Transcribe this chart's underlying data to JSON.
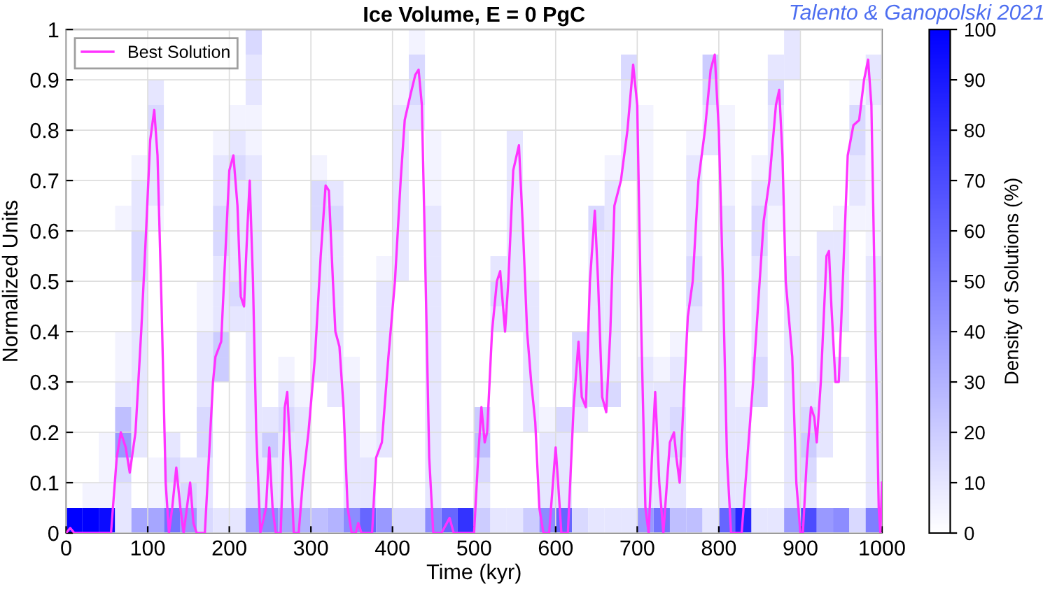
{
  "chart_data": {
    "type": "heatmap",
    "title": "Ice Volume, E = 0 PgC",
    "xlabel": "Time (kyr)",
    "ylabel": "Normalized Units",
    "clabel": "Density of Solutions (%)",
    "annotations": [
      "Talento & Ganopolski 2021"
    ],
    "xlim": [
      0,
      1000
    ],
    "xticks": [
      0,
      100,
      200,
      300,
      400,
      500,
      600,
      700,
      800,
      900,
      1000
    ],
    "ylim": [
      0,
      1
    ],
    "yticks": [
      0,
      0.1,
      0.2,
      0.3,
      0.4,
      0.5,
      0.6,
      0.7,
      0.8,
      0.9,
      1
    ],
    "clim": [
      0,
      100
    ],
    "cticks": [
      0,
      10,
      20,
      30,
      40,
      50,
      60,
      70,
      80,
      90,
      100
    ],
    "grid": true,
    "legend": "top left",
    "cells": [
      [
        null,
        null,
        null,
        null,
        null,
        null,
        null,
        0,
        0,
        0,
        0,
        15,
        0,
        0,
        0,
        0,
        0,
        0,
        0,
        0,
        0,
        5,
        0,
        0,
        0,
        0,
        0,
        0,
        0,
        0,
        0,
        0,
        0,
        0,
        0,
        0,
        0,
        0,
        0,
        0,
        0,
        0,
        0,
        0,
        10,
        0,
        0,
        0,
        0,
        0
      ],
      [
        null,
        null,
        null,
        null,
        null,
        null,
        null,
        0,
        0,
        0,
        0,
        10,
        0,
        0,
        0,
        0,
        0,
        0,
        0,
        0,
        0,
        15,
        0,
        0,
        0,
        0,
        0,
        0,
        0,
        0,
        0,
        0,
        0,
        0,
        15,
        0,
        0,
        0,
        0,
        20,
        0,
        0,
        0,
        10,
        10,
        0,
        0,
        0,
        0,
        10
      ],
      [
        0,
        0,
        0,
        0,
        0,
        10,
        0,
        0,
        0,
        0,
        0,
        10,
        0,
        0,
        0,
        0,
        0,
        0,
        0,
        0,
        5,
        15,
        0,
        0,
        0,
        0,
        0,
        0,
        0,
        0,
        0,
        0,
        0,
        0,
        10,
        0,
        0,
        0,
        0,
        15,
        0,
        0,
        0,
        15,
        0,
        0,
        0,
        0,
        5,
        10
      ],
      [
        0,
        0,
        0,
        0,
        0,
        15,
        0,
        0,
        0,
        0,
        5,
        5,
        0,
        0,
        0,
        0,
        0,
        0,
        0,
        0,
        10,
        10,
        0,
        0,
        0,
        0,
        0,
        0,
        0,
        0,
        0,
        0,
        0,
        0,
        10,
        5,
        0,
        0,
        0,
        10,
        5,
        0,
        0,
        10,
        0,
        0,
        0,
        0,
        15,
        5
      ],
      [
        0,
        0,
        0,
        0,
        0,
        10,
        0,
        0,
        0,
        5,
        10,
        5,
        0,
        0,
        0,
        0,
        0,
        0,
        0,
        0,
        10,
        0,
        5,
        0,
        0,
        0,
        0,
        10,
        0,
        0,
        0,
        0,
        0,
        0,
        10,
        5,
        0,
        0,
        5,
        10,
        5,
        0,
        0,
        10,
        0,
        0,
        0,
        0,
        15,
        5
      ],
      [
        0,
        0,
        0,
        0,
        5,
        10,
        0,
        0,
        0,
        10,
        15,
        10,
        0,
        0,
        0,
        5,
        0,
        0,
        0,
        0,
        10,
        0,
        5,
        0,
        0,
        0,
        0,
        10,
        0,
        0,
        0,
        0,
        0,
        5,
        10,
        5,
        0,
        0,
        10,
        0,
        5,
        0,
        5,
        10,
        0,
        0,
        0,
        0,
        10,
        5
      ],
      [
        0,
        0,
        0,
        0,
        10,
        10,
        0,
        0,
        0,
        10,
        10,
        10,
        0,
        0,
        0,
        15,
        10,
        0,
        0,
        0,
        10,
        0,
        5,
        0,
        0,
        0,
        0,
        10,
        5,
        0,
        0,
        0,
        0,
        10,
        0,
        5,
        0,
        0,
        10,
        0,
        5,
        0,
        10,
        10,
        5,
        0,
        0,
        0,
        10,
        5
      ],
      [
        0,
        0,
        0,
        5,
        10,
        5,
        0,
        0,
        0,
        15,
        10,
        10,
        0,
        0,
        0,
        15,
        15,
        0,
        0,
        0,
        10,
        0,
        10,
        0,
        0,
        0,
        0,
        10,
        5,
        0,
        0,
        0,
        15,
        10,
        0,
        5,
        0,
        0,
        10,
        0,
        10,
        0,
        15,
        5,
        5,
        0,
        0,
        5,
        5,
        5
      ],
      [
        0,
        0,
        0,
        0,
        15,
        0,
        0,
        0,
        0,
        15,
        10,
        10,
        0,
        0,
        0,
        10,
        10,
        0,
        0,
        0,
        10,
        0,
        10,
        0,
        0,
        0,
        0,
        10,
        5,
        0,
        0,
        0,
        10,
        10,
        0,
        5,
        0,
        0,
        10,
        0,
        10,
        0,
        15,
        0,
        5,
        0,
        10,
        10,
        0,
        5
      ],
      [
        0,
        0,
        0,
        0,
        15,
        0,
        0,
        0,
        0,
        10,
        10,
        10,
        0,
        0,
        0,
        10,
        10,
        0,
        0,
        5,
        10,
        0,
        10,
        0,
        0,
        0,
        10,
        10,
        5,
        0,
        0,
        0,
        10,
        10,
        0,
        5,
        0,
        0,
        15,
        0,
        10,
        0,
        10,
        0,
        10,
        0,
        10,
        10,
        0,
        10
      ],
      [
        0,
        0,
        0,
        0,
        10,
        0,
        0,
        0,
        5,
        10,
        15,
        10,
        0,
        0,
        0,
        10,
        10,
        0,
        0,
        10,
        0,
        0,
        10,
        0,
        0,
        0,
        15,
        10,
        10,
        0,
        0,
        0,
        10,
        10,
        0,
        5,
        0,
        0,
        15,
        0,
        10,
        0,
        10,
        0,
        10,
        0,
        10,
        10,
        0,
        10
      ],
      [
        0,
        0,
        0,
        0,
        10,
        0,
        0,
        0,
        5,
        10,
        10,
        10,
        0,
        0,
        0,
        10,
        10,
        0,
        0,
        10,
        0,
        0,
        10,
        0,
        0,
        0,
        10,
        10,
        10,
        0,
        0,
        0,
        10,
        10,
        0,
        5,
        0,
        0,
        10,
        0,
        10,
        0,
        10,
        0,
        10,
        0,
        10,
        10,
        0,
        10
      ],
      [
        0,
        0,
        0,
        5,
        10,
        0,
        0,
        0,
        10,
        20,
        0,
        10,
        0,
        0,
        0,
        10,
        10,
        0,
        0,
        10,
        0,
        0,
        10,
        0,
        0,
        0,
        0,
        0,
        10,
        0,
        0,
        15,
        10,
        10,
        0,
        5,
        0,
        5,
        0,
        0,
        10,
        0,
        10,
        0,
        10,
        0,
        10,
        0,
        0,
        10
      ],
      [
        0,
        0,
        0,
        5,
        10,
        0,
        0,
        0,
        10,
        20,
        0,
        10,
        0,
        5,
        0,
        10,
        10,
        5,
        0,
        10,
        0,
        0,
        10,
        0,
        0,
        0,
        0,
        0,
        10,
        0,
        0,
        15,
        10,
        10,
        0,
        10,
        5,
        10,
        0,
        0,
        10,
        0,
        15,
        0,
        10,
        0,
        10,
        10,
        0,
        10
      ],
      [
        0,
        0,
        0,
        10,
        10,
        0,
        0,
        0,
        10,
        0,
        0,
        10,
        0,
        10,
        5,
        0,
        10,
        10,
        0,
        10,
        0,
        0,
        10,
        0,
        0,
        0,
        0,
        0,
        10,
        0,
        0,
        15,
        15,
        15,
        0,
        10,
        10,
        10,
        0,
        0,
        10,
        5,
        15,
        0,
        10,
        10,
        10,
        0,
        0,
        10
      ],
      [
        0,
        0,
        0,
        25,
        10,
        0,
        0,
        0,
        15,
        0,
        0,
        10,
        10,
        15,
        10,
        0,
        0,
        10,
        0,
        10,
        0,
        0,
        10,
        0,
        0,
        20,
        0,
        0,
        10,
        5,
        15,
        10,
        0,
        0,
        0,
        10,
        10,
        15,
        0,
        0,
        10,
        10,
        0,
        0,
        10,
        15,
        10,
        0,
        0,
        10
      ],
      [
        0,
        0,
        5,
        40,
        10,
        0,
        10,
        0,
        15,
        0,
        0,
        10,
        20,
        10,
        10,
        0,
        0,
        10,
        5,
        10,
        0,
        0,
        10,
        0,
        0,
        25,
        0,
        0,
        0,
        10,
        10,
        0,
        0,
        0,
        0,
        10,
        10,
        15,
        0,
        0,
        10,
        10,
        0,
        0,
        10,
        20,
        10,
        0,
        0,
        10
      ],
      [
        0,
        0,
        5,
        15,
        0,
        5,
        15,
        10,
        10,
        0,
        0,
        10,
        10,
        10,
        10,
        0,
        0,
        10,
        10,
        0,
        0,
        0,
        10,
        0,
        0,
        15,
        0,
        0,
        0,
        10,
        10,
        0,
        0,
        0,
        0,
        10,
        10,
        10,
        0,
        0,
        10,
        10,
        0,
        0,
        10,
        15,
        0,
        0,
        0,
        10
      ],
      [
        0,
        5,
        5,
        10,
        0,
        5,
        10,
        15,
        10,
        0,
        0,
        10,
        10,
        10,
        10,
        0,
        0,
        10,
        10,
        0,
        0,
        0,
        10,
        0,
        0,
        10,
        0,
        0,
        0,
        10,
        10,
        0,
        0,
        0,
        0,
        10,
        10,
        10,
        0,
        0,
        10,
        10,
        0,
        0,
        10,
        10,
        0,
        0,
        0,
        10
      ],
      [
        100,
        100,
        95,
        10,
        35,
        35,
        55,
        40,
        15,
        10,
        10,
        40,
        45,
        35,
        30,
        25,
        30,
        45,
        60,
        40,
        15,
        15,
        45,
        60,
        80,
        20,
        10,
        10,
        20,
        45,
        60,
        15,
        10,
        10,
        10,
        40,
        55,
        25,
        25,
        10,
        60,
        85,
        10,
        10,
        40,
        70,
        40,
        45,
        15,
        50
      ]
    ],
    "series": [
      {
        "name": "Best Solution",
        "type": "line",
        "color": "#ff33ff",
        "x": [
          0,
          5,
          10,
          55,
          62,
          67,
          73,
          78,
          85,
          92,
          98,
          103,
          108,
          112,
          117,
          122,
          126,
          130,
          135,
          140,
          144,
          148,
          152,
          156,
          160,
          170,
          175,
          180,
          183,
          190,
          195,
          200,
          205,
          210,
          214,
          218,
          222,
          225,
          229,
          233,
          238,
          245,
          249,
          253,
          257,
          263,
          268,
          271,
          275,
          279,
          285,
          290,
          297,
          305,
          312,
          318,
          322,
          327,
          330,
          335,
          340,
          345,
          350,
          355,
          358,
          362,
          375,
          380,
          387,
          395,
          403,
          410,
          415,
          422,
          428,
          432,
          436,
          440,
          445,
          450,
          460,
          470,
          475,
          500,
          505,
          509,
          513,
          516,
          522,
          528,
          532,
          538,
          542,
          548,
          555,
          560,
          565,
          570,
          575,
          580,
          585,
          592,
          600,
          603,
          607,
          615,
          622,
          628,
          632,
          637,
          642,
          648,
          652,
          657,
          662,
          667,
          672,
          680,
          688,
          695,
          700,
          705,
          710,
          714,
          718,
          722,
          727,
          732,
          740,
          745,
          748,
          752,
          758,
          762,
          768,
          775,
          783,
          790,
          795,
          800,
          805,
          810,
          815,
          828,
          835,
          842,
          848,
          855,
          862,
          870,
          874,
          878,
          882,
          890,
          895,
          900,
          903,
          908,
          913,
          917,
          920,
          925,
          932,
          935,
          938,
          943,
          947,
          952,
          958,
          965,
          972,
          978,
          983,
          987,
          992,
          996,
          998,
          1000
        ],
        "values": [
          0,
          0.01,
          0,
          0,
          0.15,
          0.2,
          0.17,
          0.12,
          0.2,
          0.4,
          0.6,
          0.78,
          0.84,
          0.75,
          0.45,
          0.1,
          0,
          0.05,
          0.13,
          0.05,
          0,
          0.05,
          0.1,
          0.02,
          0,
          0,
          0.15,
          0.3,
          0.35,
          0.38,
          0.55,
          0.72,
          0.75,
          0.65,
          0.47,
          0.45,
          0.6,
          0.7,
          0.5,
          0.2,
          0,
          0.05,
          0.17,
          0.05,
          0,
          0,
          0.25,
          0.28,
          0.15,
          0,
          0,
          0.1,
          0.2,
          0.35,
          0.55,
          0.69,
          0.68,
          0.5,
          0.4,
          0.37,
          0.25,
          0.05,
          0,
          0,
          0.02,
          0,
          0,
          0.15,
          0.18,
          0.35,
          0.5,
          0.7,
          0.82,
          0.87,
          0.91,
          0.92,
          0.85,
          0.55,
          0.15,
          0,
          0,
          0.03,
          0,
          0,
          0.15,
          0.25,
          0.18,
          0.2,
          0.4,
          0.5,
          0.52,
          0.4,
          0.5,
          0.72,
          0.77,
          0.6,
          0.4,
          0.3,
          0.22,
          0.05,
          0,
          0,
          0.17,
          0.1,
          0,
          0,
          0.25,
          0.38,
          0.27,
          0.25,
          0.5,
          0.64,
          0.5,
          0.27,
          0.24,
          0.4,
          0.65,
          0.7,
          0.8,
          0.93,
          0.85,
          0.4,
          0.05,
          0,
          0.15,
          0.28,
          0.1,
          0,
          0.18,
          0.2,
          0.15,
          0.1,
          0.3,
          0.43,
          0.5,
          0.7,
          0.8,
          0.92,
          0.95,
          0.8,
          0.5,
          0.15,
          0,
          0,
          0.15,
          0.3,
          0.45,
          0.62,
          0.7,
          0.85,
          0.88,
          0.75,
          0.5,
          0.35,
          0.1,
          0,
          0,
          0.15,
          0.25,
          0.23,
          0.18,
          0.3,
          0.55,
          0.56,
          0.45,
          0.3,
          0.3,
          0.5,
          0.75,
          0.81,
          0.82,
          0.9,
          0.94,
          0.85,
          0.4,
          0.05,
          0,
          0.1
        ]
      }
    ]
  }
}
